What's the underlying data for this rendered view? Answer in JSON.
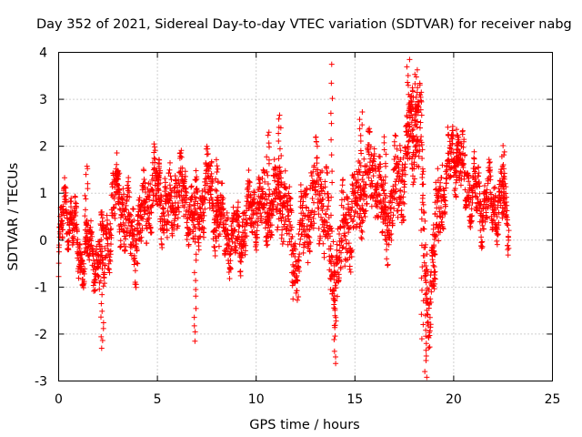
{
  "chart_data": {
    "type": "scatter",
    "title": "Day 352 of 2021, Sidereal Day-to-day VTEC variation (SDTVAR) for receiver nabg",
    "xlabel": "GPS time / hours",
    "ylabel": "SDTVAR / TECUs",
    "xlim": [
      0,
      25
    ],
    "ylim": [
      -3,
      4
    ],
    "xticks": [
      "0",
      "5",
      "10",
      "15",
      "20",
      "25"
    ],
    "yticks": [
      "4",
      "3",
      "2",
      "1",
      "0",
      "-1",
      "-2",
      "-3"
    ],
    "marker": "+",
    "color": "#ff0000",
    "grid": true,
    "series": [
      {
        "name": "SDTVAR",
        "trend": [
          [
            0.0,
            -0.45
          ],
          [
            0.3,
            0.7
          ],
          [
            0.6,
            0.6
          ],
          [
            1.0,
            -0.3
          ],
          [
            1.5,
            -0.2
          ],
          [
            2.0,
            -0.4
          ],
          [
            2.3,
            -0.3
          ],
          [
            2.7,
            0.5
          ],
          [
            3.0,
            1.0
          ],
          [
            3.5,
            0.3
          ],
          [
            4.0,
            0.0
          ],
          [
            4.5,
            0.9
          ],
          [
            5.0,
            1.2
          ],
          [
            5.5,
            0.5
          ],
          [
            6.0,
            1.1
          ],
          [
            6.5,
            0.8
          ],
          [
            7.0,
            0.4
          ],
          [
            7.5,
            1.2
          ],
          [
            8.0,
            0.5
          ],
          [
            8.5,
            0.2
          ],
          [
            9.0,
            0.0
          ],
          [
            9.5,
            0.4
          ],
          [
            10.0,
            0.8
          ],
          [
            10.5,
            0.6
          ],
          [
            11.0,
            0.8
          ],
          [
            11.3,
            1.1
          ],
          [
            11.7,
            0.0
          ],
          [
            12.0,
            -0.5
          ],
          [
            12.5,
            0.5
          ],
          [
            13.0,
            1.0
          ],
          [
            13.5,
            0.8
          ],
          [
            13.8,
            -0.7
          ],
          [
            14.2,
            -0.4
          ],
          [
            14.5,
            0.3
          ],
          [
            15.0,
            0.6
          ],
          [
            15.5,
            1.2
          ],
          [
            16.0,
            1.5
          ],
          [
            16.5,
            0.3
          ],
          [
            17.0,
            1.0
          ],
          [
            17.5,
            1.6
          ],
          [
            18.0,
            2.3
          ],
          [
            18.3,
            2.6
          ],
          [
            18.6,
            -0.9
          ],
          [
            18.8,
            -1.2
          ],
          [
            19.0,
            -0.2
          ],
          [
            19.3,
            0.9
          ],
          [
            19.6,
            1.3
          ],
          [
            20.0,
            1.9
          ],
          [
            20.5,
            1.4
          ],
          [
            21.0,
            1.0
          ],
          [
            21.5,
            0.7
          ],
          [
            22.0,
            0.8
          ],
          [
            22.5,
            0.8
          ],
          [
            22.8,
            0.5
          ]
        ],
        "spikes": [
          [
            2.2,
            -2.3
          ],
          [
            6.9,
            -2.2
          ],
          [
            13.8,
            3.7
          ],
          [
            14.0,
            -2.6
          ],
          [
            17.7,
            4.0
          ],
          [
            17.9,
            3.3
          ],
          [
            18.1,
            3.6
          ],
          [
            18.4,
            -2.1
          ],
          [
            18.6,
            -2.9
          ],
          [
            19.0,
            -1.0
          ],
          [
            11.2,
            2.7
          ],
          [
            10.6,
            2.3
          ],
          [
            15.3,
            2.7
          ],
          [
            16.5,
            2.2
          ],
          [
            5.1,
            1.7
          ],
          [
            8.0,
            1.7
          ],
          [
            3.0,
            1.4
          ],
          [
            1.4,
            1.6
          ],
          [
            20.2,
            2.3
          ],
          [
            22.5,
            2.0
          ]
        ],
        "spread": [
          [
            0,
            2,
            0.35
          ],
          [
            2,
            5,
            0.55
          ],
          [
            5,
            8,
            0.5
          ],
          [
            8,
            11,
            0.45
          ],
          [
            11,
            13,
            0.65
          ],
          [
            13,
            15,
            0.75
          ],
          [
            15,
            17,
            0.6
          ],
          [
            17,
            19.5,
            0.7
          ],
          [
            19.5,
            23,
            0.45
          ]
        ]
      }
    ]
  }
}
